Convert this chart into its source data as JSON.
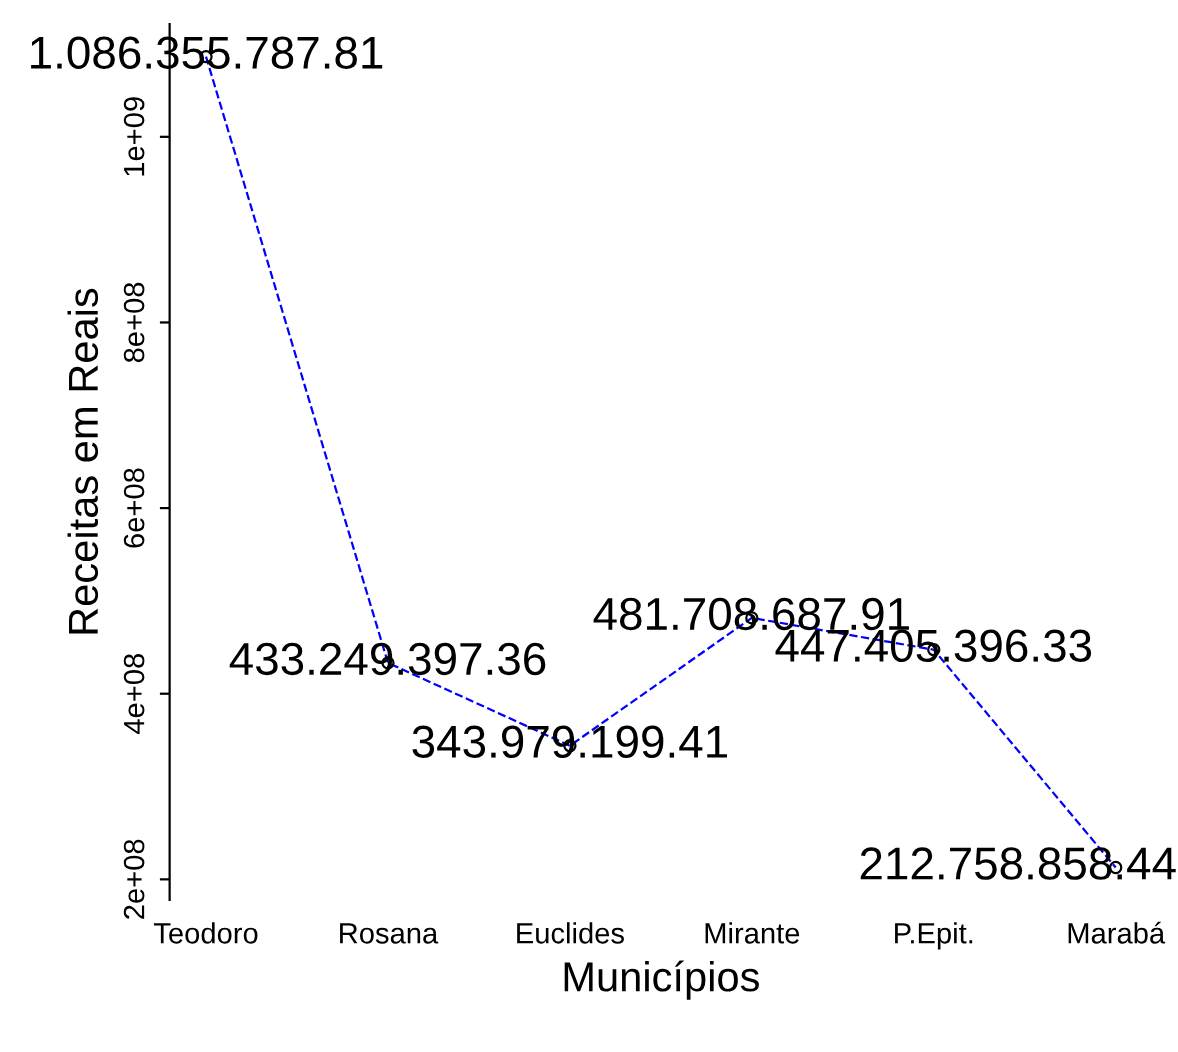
{
  "chart_data": {
    "type": "line",
    "xlabel": "Municípios",
    "ylabel": "Receitas em Reais",
    "categories": [
      "Teodoro",
      "Rosana",
      "Euclides",
      "Mirante",
      "P.Epit.",
      "Marabá"
    ],
    "series": [
      {
        "color": "#0000ff",
        "values": [
          1086355787.81,
          433249397.36,
          343979199.41,
          481708687.91,
          447405396.33,
          212758858.44
        ],
        "value_labels": [
          "1.086.355.787.81",
          "433.249.397.36",
          "343.979.199.41",
          "481.708.687.91",
          "447.405.396.33",
          "212.758.858.44"
        ]
      }
    ],
    "ylim": [
      177774000,
      1121340000
    ],
    "yticks": [
      {
        "value": 200000000,
        "label": "2e+08"
      },
      {
        "value": 400000000,
        "label": "4e+08"
      },
      {
        "value": 600000000,
        "label": "6e+08"
      },
      {
        "value": 800000000,
        "label": "8e+08"
      },
      {
        "value": 1000000000,
        "label": "1e+09"
      }
    ],
    "marker": "circle",
    "line_style": "dashed",
    "grid": false,
    "legend": false
  }
}
